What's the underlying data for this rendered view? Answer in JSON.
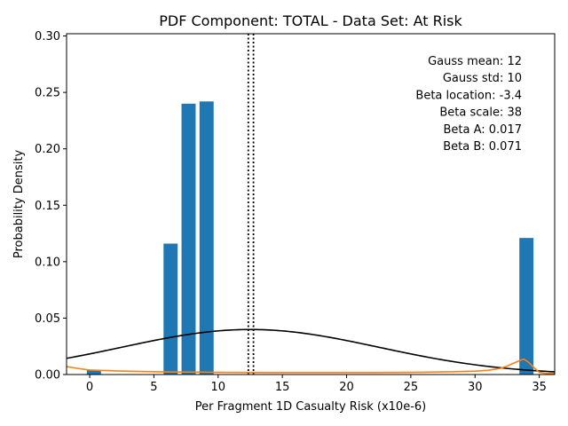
{
  "chart_data": {
    "type": "bar",
    "title": "PDF Component: TOTAL - Data Set: At Risk",
    "xlabel": "Per Fragment 1D Casualty Risk (x10e-6)",
    "ylabel": "Probability Density",
    "xlim": [
      -1.8,
      36.2
    ],
    "ylim": [
      0,
      0.302
    ],
    "xticks": [
      0,
      5,
      10,
      15,
      20,
      25,
      30,
      35
    ],
    "yticks": [
      0.0,
      0.05,
      0.1,
      0.15,
      0.2,
      0.25,
      0.3
    ],
    "ytick_labels": [
      "0.00",
      "0.05",
      "0.10",
      "0.15",
      "0.20",
      "0.25",
      "0.30"
    ],
    "bar_color": "#1f77b4",
    "bar_width": 1.1,
    "bars": [
      {
        "x": 0.33,
        "y": 0.004
      },
      {
        "x": 6.3,
        "y": 0.116
      },
      {
        "x": 7.7,
        "y": 0.24
      },
      {
        "x": 9.1,
        "y": 0.242
      },
      {
        "x": 34.0,
        "y": 0.121
      }
    ],
    "vlines": [
      12.35,
      12.75
    ],
    "vline_style": "dotted",
    "gauss": {
      "mean": 12.5,
      "std": 10,
      "color": "#000000"
    },
    "beta_curve": {
      "color": "#ff7f0e",
      "x": [
        -1.8,
        -1,
        0,
        1,
        2,
        4,
        6,
        8,
        10,
        12,
        14,
        16,
        18,
        20,
        22,
        24,
        26,
        28,
        30,
        31,
        32,
        32.5,
        33,
        33.5,
        33.8,
        34.2,
        34.6,
        35,
        35.5,
        36.2
      ],
      "y": [
        0.007,
        0.0055,
        0.004,
        0.0036,
        0.0032,
        0.0027,
        0.0023,
        0.0021,
        0.0019,
        0.0018,
        0.0017,
        0.0017,
        0.0017,
        0.0017,
        0.0017,
        0.0018,
        0.002,
        0.0024,
        0.003,
        0.0037,
        0.0055,
        0.0075,
        0.01,
        0.0125,
        0.0137,
        0.0105,
        0.006,
        0.002,
        0.001,
        0.001
      ]
    },
    "annotations": [
      "Gauss mean: 12",
      "Gauss std: 10",
      "Beta location: -3.4",
      "Beta scale: 38",
      "Beta A: 0.017",
      "Beta B: 0.071"
    ],
    "legend": "none",
    "grid": false
  }
}
